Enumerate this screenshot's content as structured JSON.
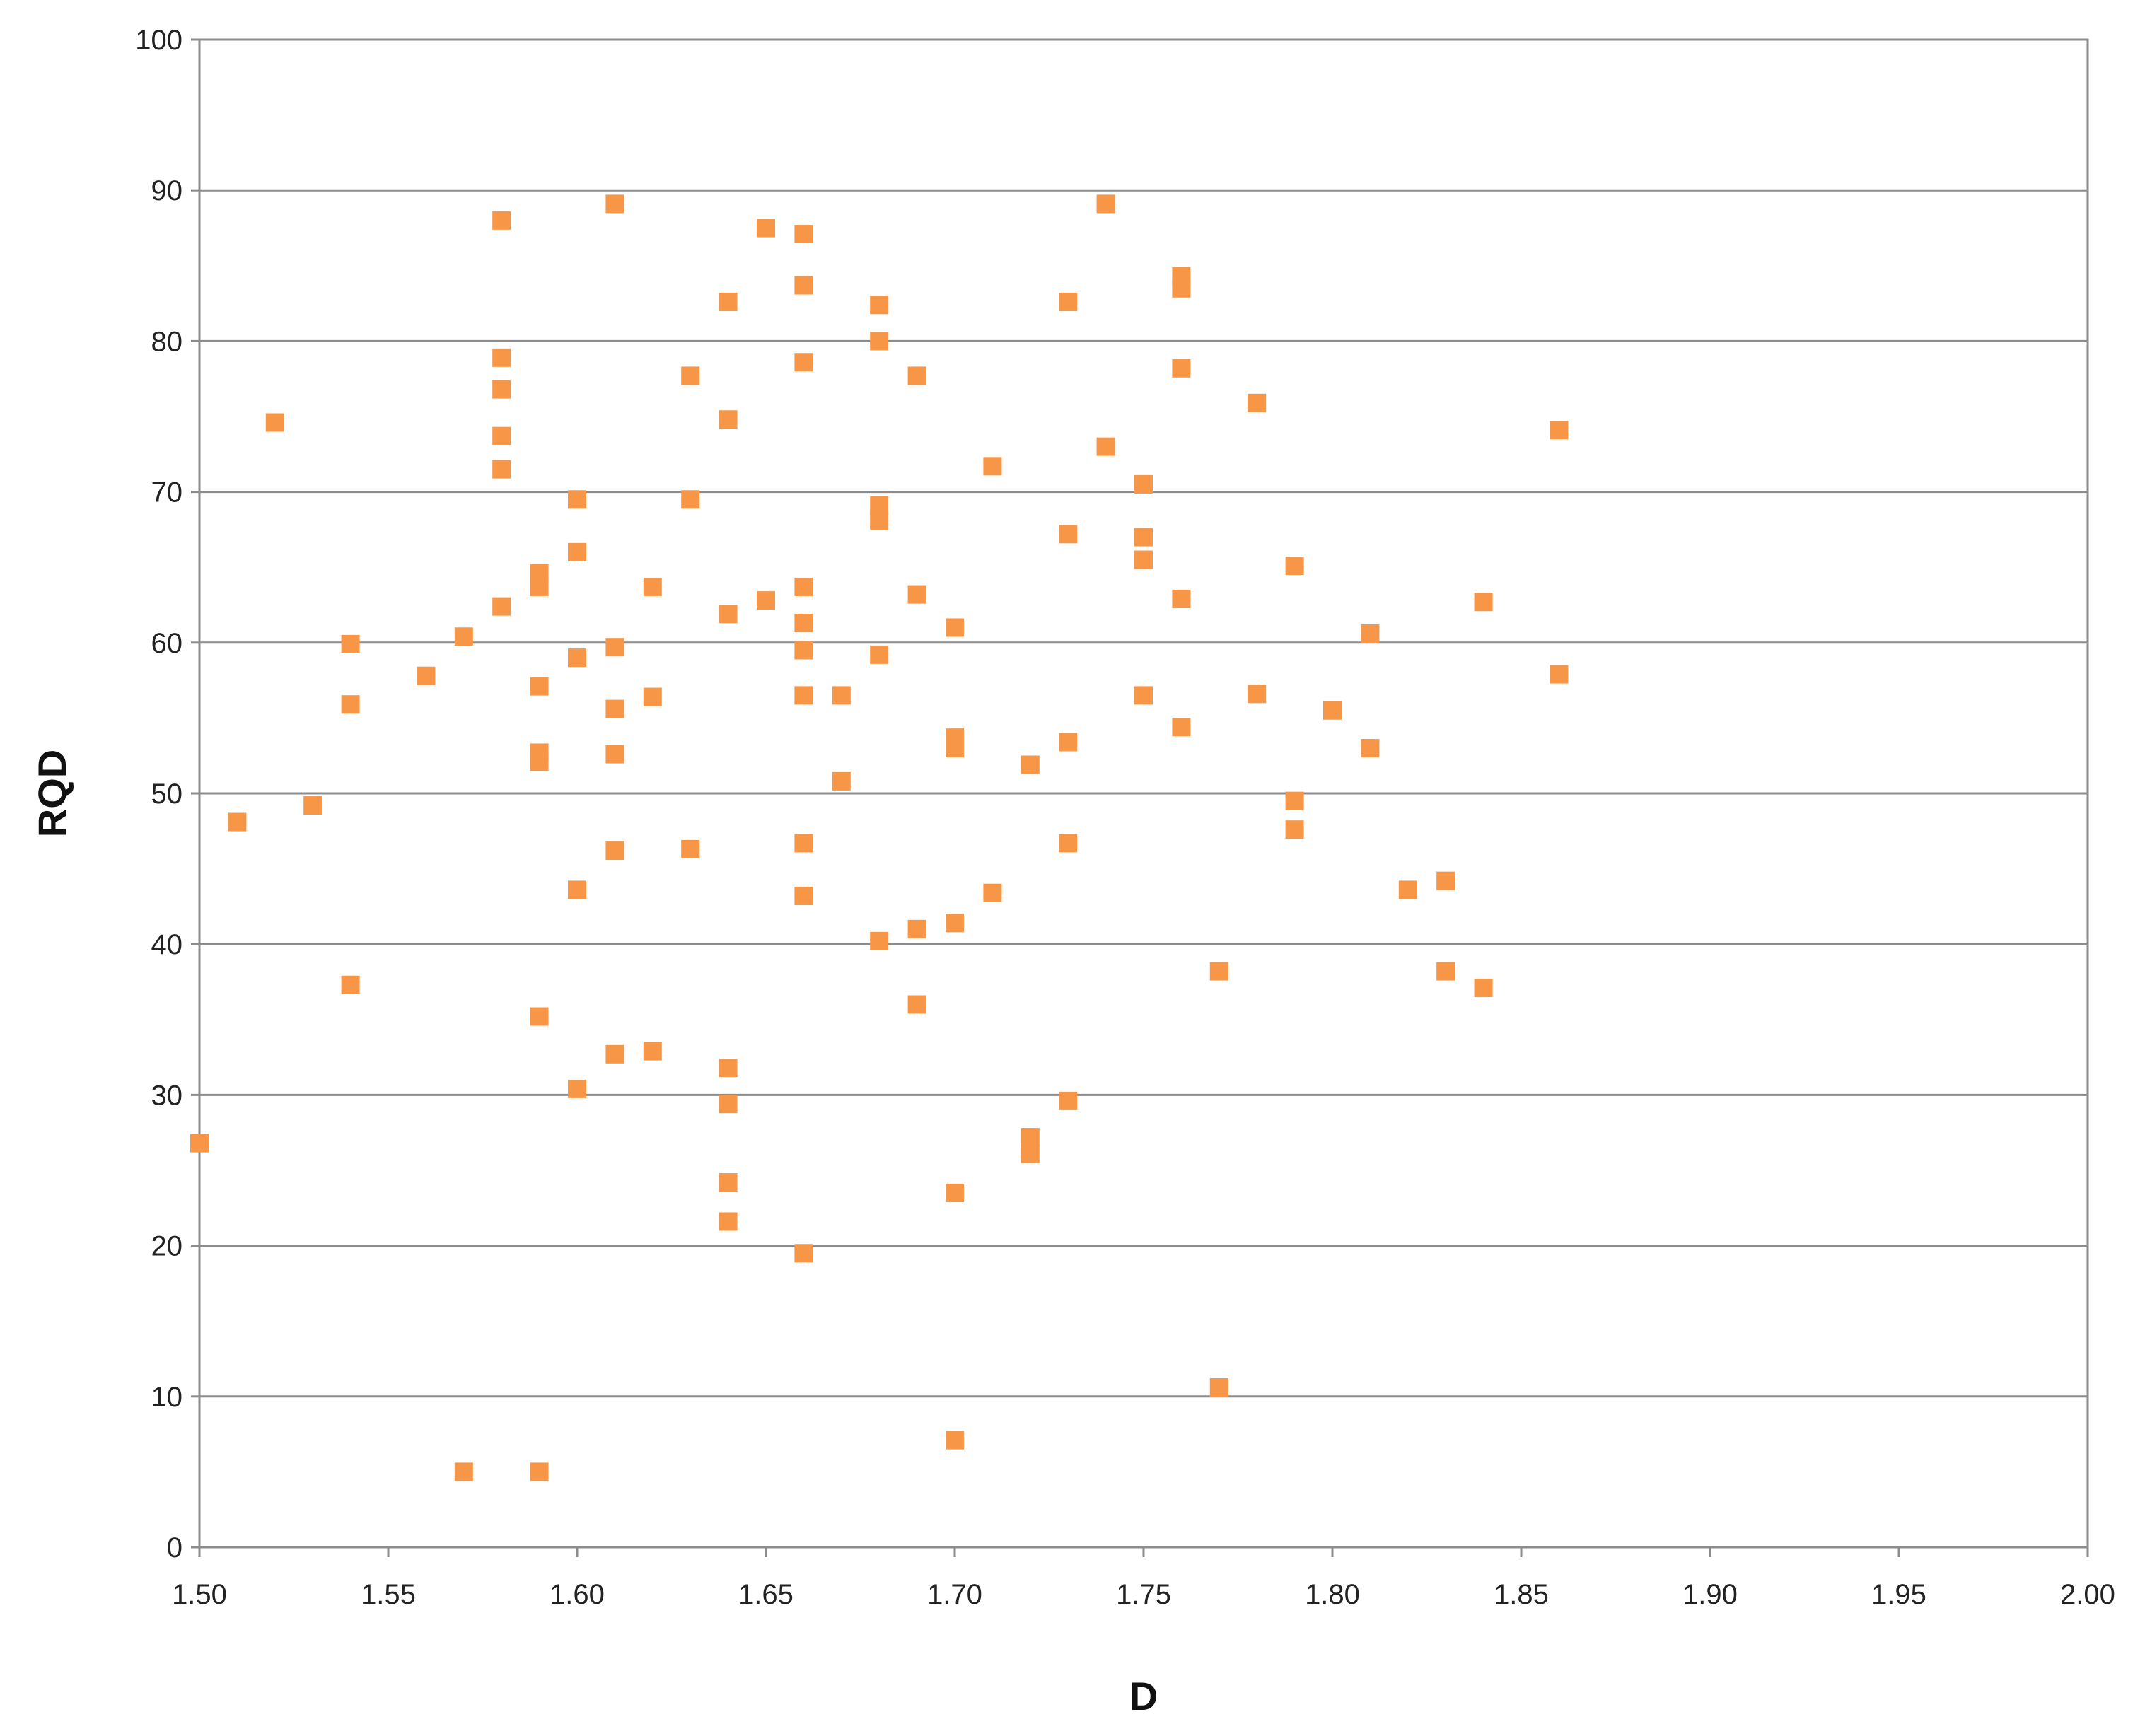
{
  "chart_data": {
    "type": "scatter",
    "title": "",
    "xlabel": "D",
    "ylabel": "RQD",
    "xlim": [
      1.5,
      2.0
    ],
    "ylim": [
      0,
      100
    ],
    "x_ticks": [
      "1.50",
      "1.55",
      "1.60",
      "1.65",
      "1.70",
      "1.75",
      "1.80",
      "1.85",
      "1.90",
      "1.95",
      "2.00"
    ],
    "y_ticks": [
      "0",
      "10",
      "20",
      "30",
      "40",
      "50",
      "60",
      "70",
      "80",
      "90",
      "100"
    ],
    "grid": "horizontal",
    "legend": "none",
    "marker": "square",
    "marker_color": "#F79646",
    "series": [
      {
        "points": [
          [
            1.5,
            26.8
          ],
          [
            1.51,
            48.1
          ],
          [
            1.52,
            74.6
          ],
          [
            1.53,
            49.2
          ],
          [
            1.54,
            59.9
          ],
          [
            1.54,
            55.9
          ],
          [
            1.54,
            37.3
          ],
          [
            1.56,
            57.8
          ],
          [
            1.57,
            60.4
          ],
          [
            1.57,
            5.0
          ],
          [
            1.58,
            88.0
          ],
          [
            1.58,
            78.9
          ],
          [
            1.58,
            76.8
          ],
          [
            1.58,
            73.7
          ],
          [
            1.58,
            71.5
          ],
          [
            1.58,
            62.4
          ],
          [
            1.59,
            64.6
          ],
          [
            1.59,
            63.7
          ],
          [
            1.59,
            57.1
          ],
          [
            1.59,
            52.7
          ],
          [
            1.59,
            52.1
          ],
          [
            1.59,
            35.2
          ],
          [
            1.59,
            5.0
          ],
          [
            1.6,
            69.5
          ],
          [
            1.6,
            66.0
          ],
          [
            1.6,
            59.0
          ],
          [
            1.6,
            43.6
          ],
          [
            1.6,
            30.4
          ],
          [
            1.61,
            89.1
          ],
          [
            1.61,
            59.7
          ],
          [
            1.61,
            55.6
          ],
          [
            1.61,
            52.6
          ],
          [
            1.61,
            46.2
          ],
          [
            1.61,
            32.7
          ],
          [
            1.62,
            63.7
          ],
          [
            1.62,
            56.4
          ],
          [
            1.62,
            32.9
          ],
          [
            1.63,
            77.7
          ],
          [
            1.63,
            69.5
          ],
          [
            1.63,
            46.3
          ],
          [
            1.64,
            82.6
          ],
          [
            1.64,
            74.8
          ],
          [
            1.64,
            61.9
          ],
          [
            1.64,
            31.8
          ],
          [
            1.64,
            29.4
          ],
          [
            1.64,
            24.2
          ],
          [
            1.64,
            21.6
          ],
          [
            1.65,
            87.5
          ],
          [
            1.65,
            62.8
          ],
          [
            1.66,
            87.1
          ],
          [
            1.66,
            83.7
          ],
          [
            1.66,
            78.6
          ],
          [
            1.66,
            63.7
          ],
          [
            1.66,
            61.3
          ],
          [
            1.66,
            59.5
          ],
          [
            1.66,
            56.5
          ],
          [
            1.66,
            46.7
          ],
          [
            1.66,
            43.2
          ],
          [
            1.66,
            19.5
          ],
          [
            1.67,
            56.5
          ],
          [
            1.67,
            50.8
          ],
          [
            1.68,
            82.4
          ],
          [
            1.68,
            80.0
          ],
          [
            1.68,
            69.1
          ],
          [
            1.68,
            68.1
          ],
          [
            1.68,
            59.2
          ],
          [
            1.68,
            40.2
          ],
          [
            1.69,
            77.7
          ],
          [
            1.69,
            63.2
          ],
          [
            1.69,
            41.0
          ],
          [
            1.69,
            36.0
          ],
          [
            1.7,
            61.0
          ],
          [
            1.7,
            53.7
          ],
          [
            1.7,
            53.0
          ],
          [
            1.7,
            41.4
          ],
          [
            1.7,
            23.5
          ],
          [
            1.7,
            7.1
          ],
          [
            1.71,
            71.7
          ],
          [
            1.71,
            43.4
          ],
          [
            1.72,
            51.9
          ],
          [
            1.72,
            27.2
          ],
          [
            1.72,
            26.1
          ],
          [
            1.73,
            82.6
          ],
          [
            1.73,
            67.2
          ],
          [
            1.73,
            53.4
          ],
          [
            1.73,
            46.7
          ],
          [
            1.73,
            29.6
          ],
          [
            1.74,
            89.1
          ],
          [
            1.74,
            73.0
          ],
          [
            1.75,
            70.5
          ],
          [
            1.75,
            67.0
          ],
          [
            1.75,
            65.5
          ],
          [
            1.75,
            56.5
          ],
          [
            1.76,
            84.3
          ],
          [
            1.76,
            83.5
          ],
          [
            1.76,
            78.2
          ],
          [
            1.76,
            62.9
          ],
          [
            1.76,
            54.4
          ],
          [
            1.77,
            38.2
          ],
          [
            1.77,
            10.6
          ],
          [
            1.78,
            75.9
          ],
          [
            1.78,
            56.6
          ],
          [
            1.79,
            65.1
          ],
          [
            1.79,
            49.5
          ],
          [
            1.79,
            47.6
          ],
          [
            1.8,
            55.5
          ],
          [
            1.81,
            60.6
          ],
          [
            1.81,
            53.0
          ],
          [
            1.82,
            43.6
          ],
          [
            1.83,
            44.2
          ],
          [
            1.83,
            38.2
          ],
          [
            1.84,
            62.7
          ],
          [
            1.84,
            37.1
          ],
          [
            1.86,
            74.1
          ],
          [
            1.86,
            57.9
          ]
        ]
      }
    ]
  }
}
